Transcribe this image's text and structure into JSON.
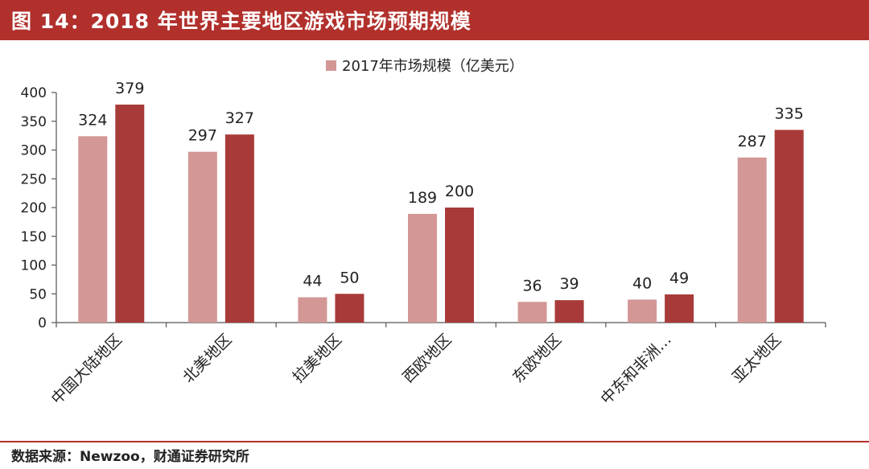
{
  "header": {
    "title": "图 14：2018 年世界主要地区游戏市场预期规模"
  },
  "footer": {
    "source": "数据来源：Newzoo，财通证券研究所"
  },
  "colors": {
    "title_bar": "#b1302c",
    "series_2017": "#d39795",
    "series_2018": "#a83b39"
  },
  "chart_data": {
    "type": "bar",
    "title": "",
    "xlabel": "",
    "ylabel": "",
    "ylim": [
      0,
      400
    ],
    "yticks": [
      0,
      50,
      100,
      150,
      200,
      250,
      300,
      350,
      400
    ],
    "grid": false,
    "legend_position": "top-center",
    "categories": [
      "中国大陆地区",
      "北美地区",
      "拉美地区",
      "西欧地区",
      "东欧地区",
      "中东和非洲…",
      "亚太地区"
    ],
    "series": [
      {
        "name": "2017年市场规模（亿美元）",
        "values": [
          324,
          297,
          44,
          189,
          36,
          40,
          287
        ]
      },
      {
        "values": [
          379,
          327,
          50,
          200,
          39,
          49,
          335
        ]
      }
    ]
  }
}
